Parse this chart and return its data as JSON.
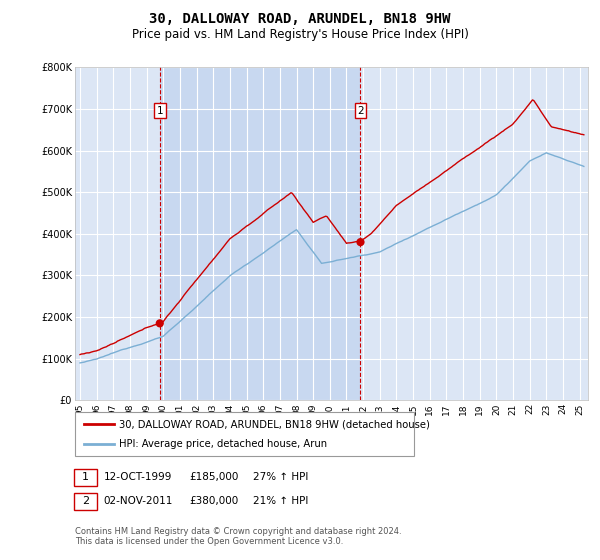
{
  "title": "30, DALLOWAY ROAD, ARUNDEL, BN18 9HW",
  "subtitle": "Price paid vs. HM Land Registry's House Price Index (HPI)",
  "title_fontsize": 10,
  "subtitle_fontsize": 8.5,
  "background_color": "#ffffff",
  "plot_bg_color": "#dce6f5",
  "plot_bg_between": "#c8d8f0",
  "grid_color": "#ffffff",
  "line1_color": "#cc0000",
  "line2_color": "#7bafd4",
  "purchase1_year": 1999.79,
  "purchase1_price": 185000,
  "purchase2_year": 2011.84,
  "purchase2_price": 380000,
  "legend1": "30, DALLOWAY ROAD, ARUNDEL, BN18 9HW (detached house)",
  "legend2": "HPI: Average price, detached house, Arun",
  "note1_date": "12-OCT-1999",
  "note1_price": "£185,000",
  "note1_hpi": "27% ↑ HPI",
  "note2_date": "02-NOV-2011",
  "note2_price": "£380,000",
  "note2_hpi": "21% ↑ HPI",
  "copyright": "Contains HM Land Registry data © Crown copyright and database right 2024.\nThis data is licensed under the Open Government Licence v3.0.",
  "ylim_max": 800000,
  "xlim_start": 1994.7,
  "xlim_end": 2025.5
}
